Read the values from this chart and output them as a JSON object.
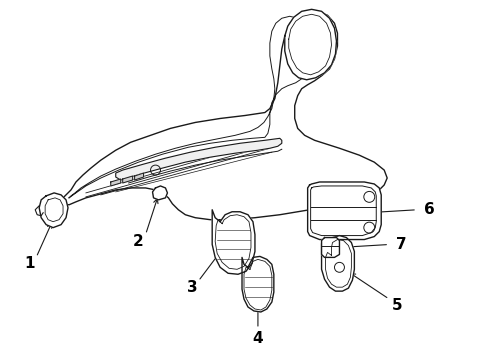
{
  "background_color": "#ffffff",
  "line_color": "#1a1a1a",
  "label_color": "#000000",
  "fig_width": 4.9,
  "fig_height": 3.6,
  "dpi": 100,
  "label_fontsize": 11,
  "arrow_color": "#1a1a1a"
}
